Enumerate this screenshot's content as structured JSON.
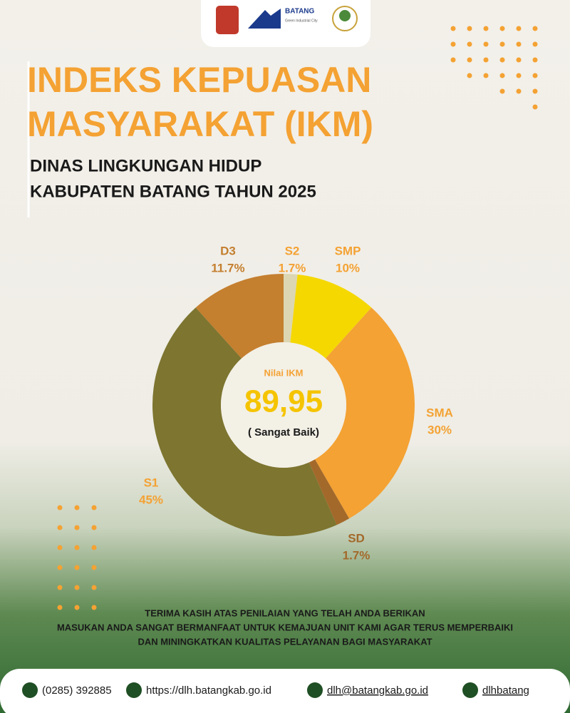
{
  "header": {
    "logo_text": "BATANG",
    "logo_tagline": "Green Industrial City"
  },
  "title": [
    "INDEKS KEPUASAN",
    "MASYARAKAT (IKM)"
  ],
  "subtitle": [
    "DINAS LINGKUNGAN HIDUP",
    "KABUPATEN BATANG TAHUN 2025"
  ],
  "chart_data": {
    "type": "pie",
    "donut": true,
    "categories": [
      "S2",
      "SMP",
      "SMA",
      "SD",
      "S1",
      "D3"
    ],
    "values": [
      1.7,
      10,
      30,
      1.7,
      45,
      11.7
    ],
    "value_labels": [
      "1.7%",
      "10%",
      "30%",
      "1.7%",
      "45%",
      "11.7%"
    ],
    "colors": [
      "#dcd6b2",
      "#f5d800",
      "#f4a233",
      "#a3692b",
      "#7d7530",
      "#c47f2f"
    ],
    "center_caption": "Nilai IKM",
    "center_value": "89,95",
    "center_note": "( Sangat Baik)"
  },
  "message": [
    "TERIMA KASIH ATAS PENILAIAN YANG TELAH ANDA BERIKAN",
    "MASUKAN ANDA SANGAT BERMANFAAT UNTUK KEMAJUAN UNIT KAMI AGAR TERUS MEMPERBAIKI",
    "DAN MININGKATKAN KUALITAS PELAYANAN BAGI MASYARAKAT"
  ],
  "contacts": [
    "(0285) 392885",
    "https://dlh.batangkab.go.id",
    "dlh@batangkab.go.id",
    "dlhbatang"
  ]
}
